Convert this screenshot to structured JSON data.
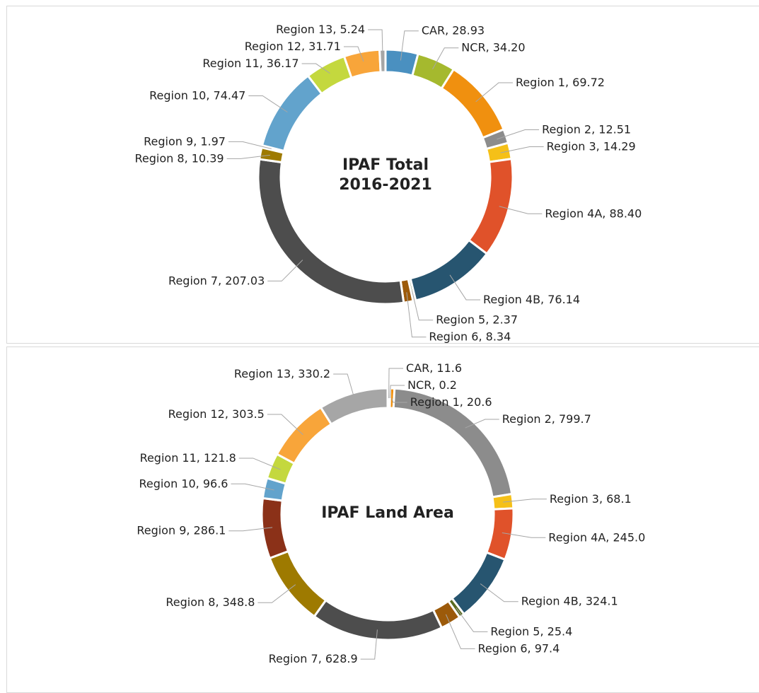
{
  "chart_data": [
    {
      "type": "donut",
      "title": "IPAF Total 2016-2021",
      "categories": [
        "CAR",
        "NCR",
        "Region 1",
        "Region 2",
        "Region 3",
        "Region 4A",
        "Region 4B",
        "Region 5",
        "Region 6",
        "Region 7",
        "Region 8",
        "Region 9",
        "Region 10",
        "Region 11",
        "Region 12",
        "Region 13"
      ],
      "values": [
        28.93,
        34.2,
        69.72,
        12.51,
        14.29,
        88.4,
        76.14,
        2.37,
        8.34,
        207.03,
        10.39,
        1.97,
        74.47,
        36.17,
        31.71,
        5.24
      ],
      "value_labels": [
        "28.93",
        "34.20",
        "69.72",
        "12.51",
        "14.29",
        "88.40",
        "76.14",
        "2.37",
        "8.34",
        "207.03",
        "10.39",
        "1.97",
        "74.47",
        "36.17",
        "31.71",
        "5.24"
      ],
      "colors": [
        "#4a90c0",
        "#a5b92e",
        "#f0900f",
        "#8c8c8c",
        "#f5c018",
        "#e0522a",
        "#275570",
        "#5a6b1f",
        "#9c5a0a",
        "#4d4d4d",
        "#9e7a00",
        "#8b3118",
        "#62a3cc",
        "#c4d83e",
        "#f8a53a",
        "#a6a6a6"
      ]
    },
    {
      "type": "donut",
      "title": "IPAF Land Area",
      "categories": [
        "CAR",
        "NCR",
        "Region 1",
        "Region 2",
        "Region 3",
        "Region 4A",
        "Region 4B",
        "Region 5",
        "Region 6",
        "Region 7",
        "Region 8",
        "Region 9",
        "Region 10",
        "Region 11",
        "Region 12",
        "Region 13"
      ],
      "values": [
        11.6,
        0.2,
        20.6,
        799.7,
        68.1,
        245.0,
        324.1,
        25.4,
        97.4,
        628.9,
        348.8,
        286.1,
        96.6,
        121.8,
        303.5,
        330.2
      ],
      "value_labels": [
        "11.6",
        "0.2",
        "20.6",
        "799.7",
        "68.1",
        "245.0",
        "324.1",
        "25.4",
        "97.4",
        "628.9",
        "348.8",
        "286.1",
        "96.6",
        "121.8",
        "303.5",
        "330.2"
      ],
      "colors": [
        "#4a90c0",
        "#a5b92e",
        "#f0900f",
        "#8c8c8c",
        "#f5c018",
        "#e0522a",
        "#275570",
        "#5a6b1f",
        "#9c5a0a",
        "#4d4d4d",
        "#9e7a00",
        "#8b3118",
        "#62a3cc",
        "#c4d83e",
        "#f8a53a",
        "#a6a6a6"
      ]
    }
  ]
}
